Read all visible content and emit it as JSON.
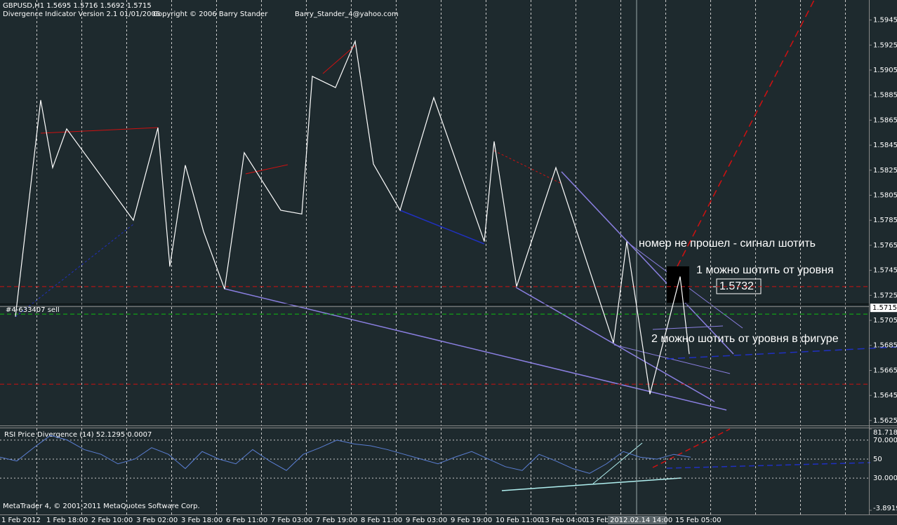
{
  "header": {
    "symbol_line": "GBPUSD,H1  1.5695 1.5716 1.5692 1.5715",
    "indicator": "Divergence Indicator Version 2.1  01/01/2006",
    "copyright": "Copyright © 2006 Barry Stander",
    "email": "Barry_Stander_4@yahoo.com"
  },
  "main": {
    "ylim": [
      1.5621,
      1.5961
    ],
    "xlim": [
      0,
      309.5
    ],
    "yticks": [
      1.5945,
      1.5925,
      1.5905,
      1.5885,
      1.5865,
      1.5845,
      1.5825,
      1.5805,
      1.5785,
      1.5765,
      1.5745,
      1.5725,
      1.5705,
      1.5685,
      1.5665,
      1.5645,
      1.5625
    ],
    "current_price": 1.5715,
    "zigzag": {
      "color": "#ffffff",
      "x": [
        5.5,
        14.5,
        18.75,
        23.75,
        47.5,
        56.25,
        60.5,
        66,
        72.5,
        80,
        87,
        100,
        107.5,
        111.25,
        119.5,
        126.5,
        133,
        142.5,
        154.5,
        172.5,
        176,
        184,
        198,
        218.5,
        223.25,
        231.5,
        242.25,
        245.5
      ],
      "values": [
        1.5708,
        1.5881,
        1.5827,
        1.5858,
        1.5785,
        1.5859,
        1.5748,
        1.5829,
        1.5776,
        1.573,
        1.5839,
        1.5793,
        1.579,
        1.59,
        1.5891,
        1.5928,
        1.583,
        1.5793,
        1.5883,
        1.5768,
        1.5848,
        1.5732,
        1.5827,
        1.5687,
        1.5768,
        1.5646,
        1.574,
        1.5678
      ]
    },
    "levels": [
      {
        "value": 1.5732,
        "color": "#d01010",
        "style": "dashed"
      },
      {
        "value": 1.5654,
        "color": "#d01010",
        "style": "dashed"
      },
      {
        "value": 1.571,
        "color": "#10c010",
        "style": "dashed"
      },
      {
        "value": 1.5718,
        "color": "#000000",
        "style": "solid"
      },
      {
        "value": 1.5716,
        "color": "#8a8a8a",
        "style": "solid"
      }
    ],
    "order_label": "#4-633407 sell",
    "annotations": [
      "номер не прошел - сигнал шотить",
      "1 можно шотить от уровня",
      "2 можно шотить от уровня в фигуре"
    ],
    "level_label": 1.5732
  },
  "rsi": {
    "title": "RSI Price Divergence (14) 52.1295 0.0007",
    "ylim": [
      -3.8919,
      81.7188
    ],
    "yticks": [
      81.7188,
      {
        "value": 70,
        "label": "70.0000"
      },
      50,
      {
        "value": 30,
        "label": "30.0000"
      },
      -3.8919
    ],
    "color": "#5b7fd4",
    "x": [
      0,
      6,
      12,
      18,
      24,
      30,
      36,
      42,
      48,
      54,
      60,
      66,
      72,
      78,
      84,
      90,
      96,
      102,
      108,
      114,
      120,
      126,
      132,
      138,
      144,
      150,
      156,
      162,
      168,
      174,
      180,
      186,
      192,
      198,
      204,
      210,
      216,
      222,
      228,
      234,
      240,
      246
    ],
    "values": [
      52,
      48,
      62,
      75,
      70,
      60,
      55,
      45,
      50,
      62,
      55,
      40,
      58,
      50,
      45,
      60,
      48,
      38,
      55,
      62,
      70,
      66,
      64,
      60,
      55,
      50,
      45,
      52,
      58,
      50,
      42,
      38,
      55,
      48,
      40,
      35,
      45,
      58,
      52,
      50,
      55,
      52
    ]
  },
  "time_axis": {
    "labels": [
      "1 Feb 2012",
      "1 Feb 18:00",
      "2 Feb 10:00",
      "3 Feb 02:00",
      "3 Feb 18:00",
      "6 Feb 11:00",
      "7 Feb 03:00",
      "7 Feb 19:00",
      "8 Feb 11:00",
      "9 Feb 03:00",
      "9 Feb 19:00",
      "10 Feb 11:00",
      "13 Feb 04:00",
      "13 Feb 2",
      null,
      "15 Feb 05:00"
    ],
    "crosshair_label": "2012.02.14 14:00"
  },
  "footer": "MetaTrader 4, © 2001-2011 MetaQuotes Software Corp."
}
